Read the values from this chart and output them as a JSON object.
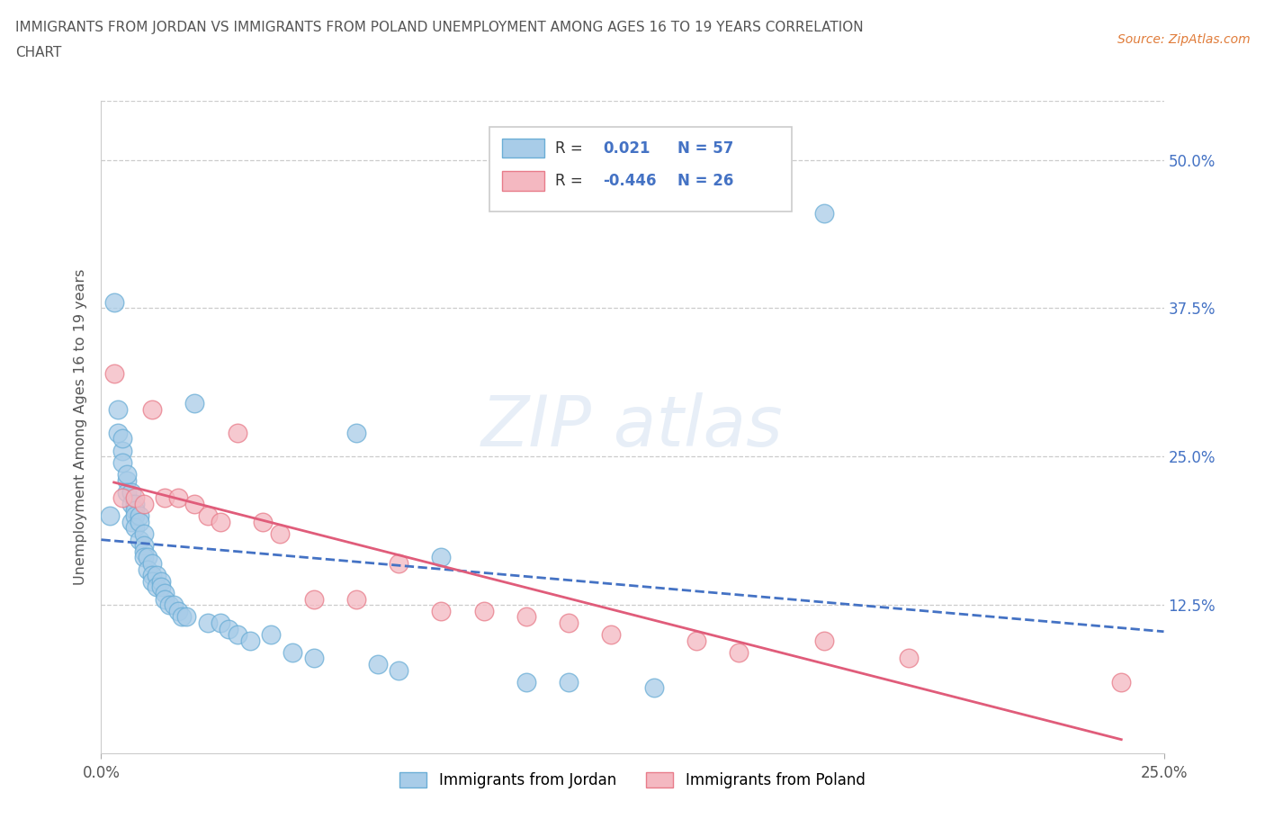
{
  "title_line1": "IMMIGRANTS FROM JORDAN VS IMMIGRANTS FROM POLAND UNEMPLOYMENT AMONG AGES 16 TO 19 YEARS CORRELATION",
  "title_line2": "CHART",
  "source_text": "Source: ZipAtlas.com",
  "ylabel": "Unemployment Among Ages 16 to 19 years",
  "xlim": [
    0.0,
    0.25
  ],
  "ylim": [
    0.0,
    0.55
  ],
  "ytick_positions": [
    0.0,
    0.125,
    0.25,
    0.375,
    0.5
  ],
  "ytick_labels": [
    "",
    "12.5%",
    "25.0%",
    "37.5%",
    "50.0%"
  ],
  "jordan_color": "#a8cce8",
  "jordan_edge_color": "#6baed6",
  "poland_color": "#f4b8c1",
  "poland_edge_color": "#e87c8a",
  "jordan_line_color": "#4472c4",
  "poland_line_color": "#e05c7a",
  "jordan_R": 0.021,
  "jordan_N": 57,
  "poland_R": -0.446,
  "poland_N": 26,
  "jordan_x": [
    0.002,
    0.003,
    0.004,
    0.004,
    0.005,
    0.005,
    0.005,
    0.006,
    0.006,
    0.006,
    0.007,
    0.007,
    0.007,
    0.008,
    0.008,
    0.008,
    0.008,
    0.009,
    0.009,
    0.009,
    0.01,
    0.01,
    0.01,
    0.01,
    0.011,
    0.011,
    0.012,
    0.012,
    0.012,
    0.013,
    0.013,
    0.014,
    0.014,
    0.015,
    0.015,
    0.016,
    0.017,
    0.018,
    0.019,
    0.02,
    0.022,
    0.025,
    0.028,
    0.03,
    0.032,
    0.035,
    0.04,
    0.045,
    0.05,
    0.06,
    0.065,
    0.07,
    0.08,
    0.1,
    0.11,
    0.13,
    0.17
  ],
  "jordan_y": [
    0.2,
    0.38,
    0.29,
    0.27,
    0.255,
    0.265,
    0.245,
    0.23,
    0.235,
    0.22,
    0.22,
    0.21,
    0.195,
    0.21,
    0.205,
    0.2,
    0.19,
    0.2,
    0.195,
    0.18,
    0.185,
    0.175,
    0.17,
    0.165,
    0.165,
    0.155,
    0.16,
    0.15,
    0.145,
    0.15,
    0.14,
    0.145,
    0.14,
    0.135,
    0.13,
    0.125,
    0.125,
    0.12,
    0.115,
    0.115,
    0.295,
    0.11,
    0.11,
    0.105,
    0.1,
    0.095,
    0.1,
    0.085,
    0.08,
    0.27,
    0.075,
    0.07,
    0.165,
    0.06,
    0.06,
    0.055,
    0.455
  ],
  "poland_x": [
    0.003,
    0.005,
    0.008,
    0.01,
    0.012,
    0.015,
    0.018,
    0.022,
    0.025,
    0.028,
    0.032,
    0.038,
    0.042,
    0.05,
    0.06,
    0.07,
    0.08,
    0.09,
    0.1,
    0.11,
    0.12,
    0.14,
    0.15,
    0.17,
    0.19,
    0.24
  ],
  "poland_y": [
    0.32,
    0.215,
    0.215,
    0.21,
    0.29,
    0.215,
    0.215,
    0.21,
    0.2,
    0.195,
    0.27,
    0.195,
    0.185,
    0.13,
    0.13,
    0.16,
    0.12,
    0.12,
    0.115,
    0.11,
    0.1,
    0.095,
    0.085,
    0.095,
    0.08,
    0.06
  ]
}
